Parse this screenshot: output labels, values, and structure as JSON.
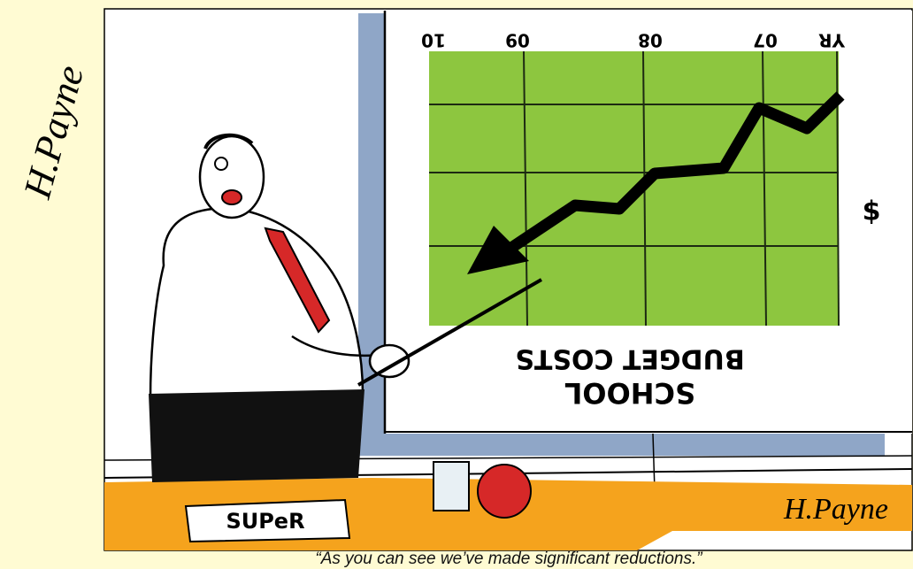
{
  "caption": "“As you can see we’ve made significant reductions.”",
  "nameplate": "SUPeR",
  "board": {
    "title": [
      "SCHOOL",
      "BUDGET COSTS"
    ],
    "axis_labels": [
      "10",
      "09",
      "08",
      "07",
      "YR"
    ],
    "side_label": "$"
  },
  "signatures": [
    "H.Payne",
    "H.Payne"
  ]
}
